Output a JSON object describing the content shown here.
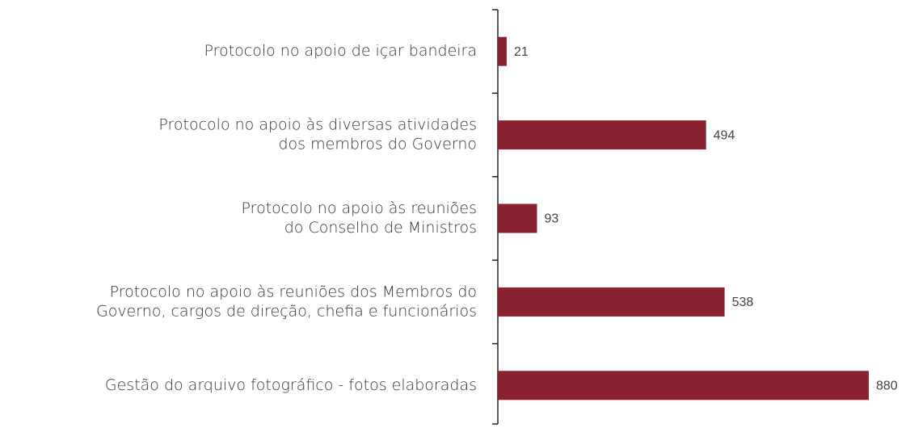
{
  "chart_data": {
    "type": "bar",
    "orientation": "horizontal",
    "categories": [
      [
        "Protocolo no apoio de içar bandeira"
      ],
      [
        "Protocolo no apoio às diversas atividades",
        "dos membros do Governo"
      ],
      [
        "Protocolo no apoio às reuniões",
        "do Conselho de Ministros"
      ],
      [
        "Protocolo no apoio às reuniões dos Membros do",
        "Governo, cargos de direção, chefia e funcionários"
      ],
      [
        "Gestão do arquivo fotográfico - fotos elaboradas"
      ]
    ],
    "values": [
      21,
      494,
      93,
      538,
      880
    ],
    "color": "#8b2232"
  }
}
